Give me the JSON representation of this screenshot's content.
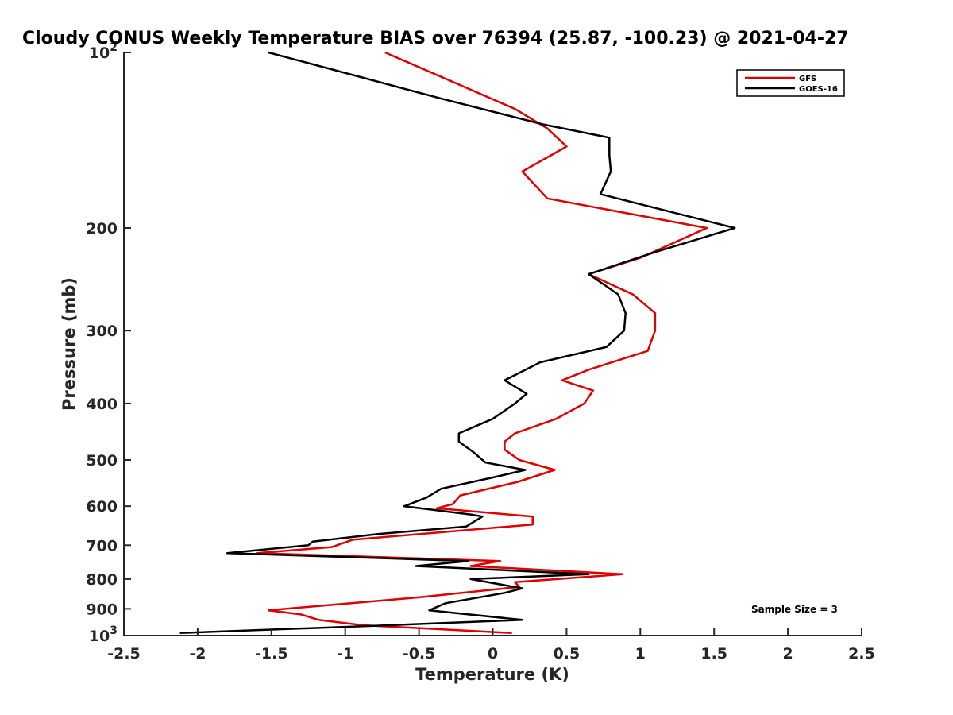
{
  "chart_data": {
    "type": "line",
    "title": "Cloudy CONUS Weekly Temperature BIAS over 76394 (25.87, -100.23) @ 2021-04-27",
    "xlabel": "Temperature (K)",
    "ylabel": "Pressure (mb)",
    "xlim": [
      -2.5,
      2.5
    ],
    "ylim": [
      100,
      1000
    ],
    "y_scale": "log",
    "y_reversed": true,
    "x_ticks": [
      -2.5,
      -2,
      -1.5,
      -1,
      -0.5,
      0,
      0.5,
      1,
      1.5,
      2,
      2.5
    ],
    "x_tick_labels": [
      "-2.5",
      "-2",
      "-1.5",
      "-1",
      "-0.5",
      "0",
      "0.5",
      "1",
      "1.5",
      "2",
      "2.5"
    ],
    "y_ticks": [
      100,
      200,
      300,
      400,
      500,
      600,
      700,
      800,
      900,
      1000
    ],
    "y_tick_labels": [
      {
        "base": "10",
        "exp": "2"
      },
      {
        "base": "200"
      },
      {
        "base": "300"
      },
      {
        "base": "400"
      },
      {
        "base": "500"
      },
      {
        "base": "600"
      },
      {
        "base": "700"
      },
      {
        "base": "800"
      },
      {
        "base": "900"
      },
      {
        "base": "10",
        "exp": "3"
      }
    ],
    "grid": false,
    "legend_position": "top-right",
    "annotation": "Sample Size = 3",
    "series": [
      {
        "name": "GFS",
        "color": "#e00000",
        "points": [
          [
            -0.73,
            100
          ],
          [
            0.15,
            125
          ],
          [
            0.37,
            135
          ],
          [
            0.5,
            145
          ],
          [
            0.2,
            160
          ],
          [
            0.37,
            178
          ],
          [
            1.45,
            200
          ],
          [
            1.0,
            225
          ],
          [
            0.65,
            240
          ],
          [
            0.95,
            260
          ],
          [
            1.1,
            280
          ],
          [
            1.1,
            300
          ],
          [
            1.05,
            325
          ],
          [
            0.65,
            350
          ],
          [
            0.47,
            365
          ],
          [
            0.68,
            380
          ],
          [
            0.62,
            400
          ],
          [
            0.43,
            425
          ],
          [
            0.15,
            450
          ],
          [
            0.08,
            465
          ],
          [
            0.08,
            480
          ],
          [
            0.18,
            500
          ],
          [
            0.42,
            520
          ],
          [
            0.17,
            545
          ],
          [
            -0.22,
            575
          ],
          [
            -0.27,
            595
          ],
          [
            -0.38,
            605
          ],
          [
            0.27,
            625
          ],
          [
            0.27,
            645
          ],
          [
            -0.95,
            685
          ],
          [
            -1.09,
            705
          ],
          [
            -1.6,
            722
          ],
          [
            0.05,
            745
          ],
          [
            -0.15,
            760
          ],
          [
            0.88,
            785
          ],
          [
            0.15,
            810
          ],
          [
            0.18,
            825
          ],
          [
            -0.5,
            860
          ],
          [
            -1.52,
            905
          ],
          [
            -1.3,
            920
          ],
          [
            -1.18,
            940
          ],
          [
            -0.88,
            960
          ],
          [
            0.13,
            990
          ]
        ]
      },
      {
        "name": "GOES-16",
        "color": "#000000",
        "points": [
          [
            -1.52,
            100
          ],
          [
            -0.35,
            120
          ],
          [
            0.35,
            133
          ],
          [
            0.79,
            140
          ],
          [
            0.79,
            150
          ],
          [
            0.8,
            160
          ],
          [
            0.73,
            175
          ],
          [
            1.64,
            200
          ],
          [
            1.1,
            220
          ],
          [
            0.65,
            240
          ],
          [
            0.85,
            260
          ],
          [
            0.9,
            280
          ],
          [
            0.89,
            300
          ],
          [
            0.77,
            320
          ],
          [
            0.32,
            340
          ],
          [
            0.08,
            365
          ],
          [
            0.23,
            385
          ],
          [
            0.15,
            400
          ],
          [
            0.0,
            425
          ],
          [
            -0.23,
            450
          ],
          [
            -0.23,
            465
          ],
          [
            -0.13,
            485
          ],
          [
            -0.05,
            505
          ],
          [
            0.22,
            520
          ],
          [
            0.01,
            535
          ],
          [
            -0.35,
            560
          ],
          [
            -0.45,
            580
          ],
          [
            -0.6,
            600
          ],
          [
            -0.15,
            620
          ],
          [
            -0.07,
            625
          ],
          [
            -0.18,
            650
          ],
          [
            -0.78,
            670
          ],
          [
            -1.22,
            690
          ],
          [
            -1.25,
            700
          ],
          [
            -1.8,
            722
          ],
          [
            -0.17,
            745
          ],
          [
            -0.52,
            760
          ],
          [
            0.65,
            785
          ],
          [
            -0.15,
            800
          ],
          [
            0.2,
            830
          ],
          [
            0.08,
            845
          ],
          [
            -0.32,
            880
          ],
          [
            -0.43,
            905
          ],
          [
            0.2,
            940
          ],
          [
            -0.7,
            960
          ],
          [
            -2.12,
            990
          ]
        ]
      }
    ]
  }
}
